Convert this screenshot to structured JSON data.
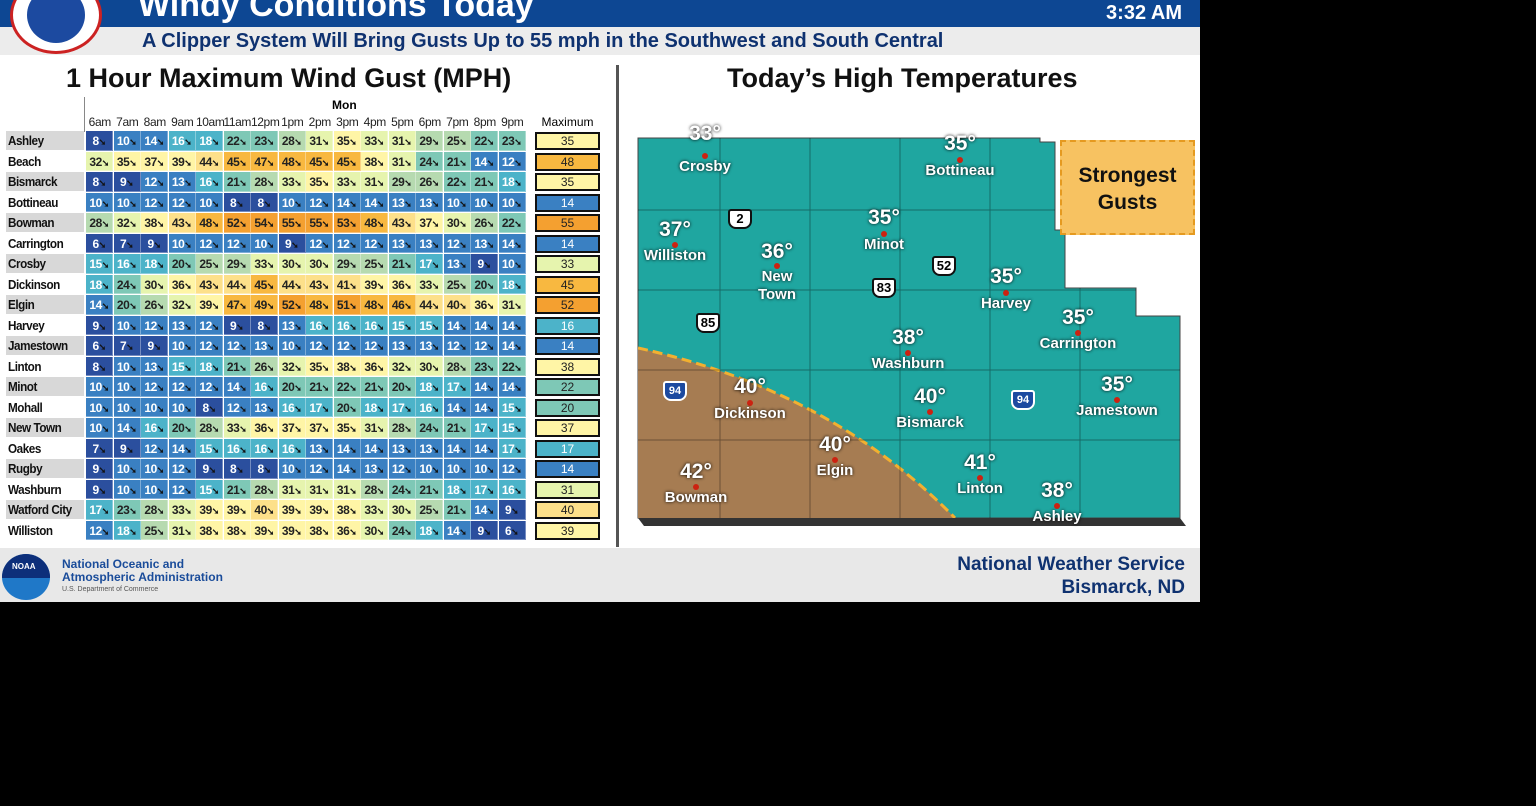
{
  "header": {
    "title": "Windy Conditions Today",
    "time": "3:32 AM",
    "subtitle": "A Clipper System Will Bring Gusts Up to 55 mph in the Southwest and South Central"
  },
  "left": {
    "title": "1 Hour Maximum Wind Gust (MPH)",
    "day": "Mon",
    "max_label": "Maximum",
    "hours": [
      "6am",
      "7am",
      "8am",
      "9am",
      "10am",
      "11am",
      "12pm",
      "1pm",
      "2pm",
      "3pm",
      "4pm",
      "5pm",
      "6pm",
      "7pm",
      "8pm",
      "9pm"
    ],
    "rows": [
      {
        "name": "Ashley",
        "values": [
          8,
          10,
          14,
          16,
          18,
          22,
          23,
          28,
          31,
          35,
          33,
          31,
          29,
          25,
          22,
          23
        ],
        "max": 35
      },
      {
        "name": "Beach",
        "values": [
          32,
          35,
          37,
          39,
          44,
          45,
          47,
          48,
          45,
          45,
          38,
          31,
          24,
          21,
          14,
          12
        ],
        "max": 48
      },
      {
        "name": "Bismarck",
        "values": [
          8,
          9,
          12,
          13,
          16,
          21,
          28,
          33,
          35,
          33,
          31,
          29,
          26,
          22,
          21,
          18
        ],
        "max": 35
      },
      {
        "name": "Bottineau",
        "values": [
          10,
          10,
          12,
          12,
          10,
          8,
          8,
          10,
          12,
          14,
          14,
          13,
          13,
          10,
          10,
          10
        ],
        "max": 14
      },
      {
        "name": "Bowman",
        "values": [
          28,
          32,
          38,
          43,
          48,
          52,
          54,
          55,
          55,
          53,
          48,
          43,
          37,
          30,
          26,
          22
        ],
        "max": 55
      },
      {
        "name": "Carrington",
        "values": [
          6,
          7,
          9,
          10,
          12,
          12,
          10,
          9,
          12,
          12,
          12,
          13,
          13,
          12,
          13,
          14
        ],
        "max": 14
      },
      {
        "name": "Crosby",
        "values": [
          15,
          16,
          18,
          20,
          25,
          29,
          33,
          30,
          30,
          29,
          25,
          21,
          17,
          13,
          9,
          10
        ],
        "max": 33
      },
      {
        "name": "Dickinson",
        "values": [
          18,
          24,
          30,
          36,
          43,
          44,
          45,
          44,
          43,
          41,
          39,
          36,
          33,
          25,
          20,
          18
        ],
        "max": 45
      },
      {
        "name": "Elgin",
        "values": [
          14,
          20,
          26,
          32,
          39,
          47,
          49,
          52,
          48,
          51,
          48,
          46,
          44,
          40,
          36,
          31
        ],
        "max": 52
      },
      {
        "name": "Harvey",
        "values": [
          9,
          10,
          12,
          13,
          12,
          9,
          8,
          13,
          16,
          16,
          16,
          15,
          15,
          14,
          14,
          14
        ],
        "max": 16
      },
      {
        "name": "Jamestown",
        "values": [
          6,
          7,
          9,
          10,
          12,
          12,
          13,
          10,
          12,
          12,
          12,
          13,
          13,
          12,
          12,
          14
        ],
        "max": 14
      },
      {
        "name": "Linton",
        "values": [
          8,
          10,
          13,
          15,
          18,
          21,
          26,
          32,
          35,
          38,
          36,
          32,
          30,
          28,
          23,
          22
        ],
        "max": 38
      },
      {
        "name": "Minot",
        "values": [
          10,
          10,
          12,
          12,
          12,
          14,
          16,
          20,
          21,
          22,
          21,
          20,
          18,
          17,
          14,
          14
        ],
        "max": 22
      },
      {
        "name": "Mohall",
        "values": [
          10,
          10,
          10,
          10,
          8,
          12,
          13,
          16,
          17,
          20,
          18,
          17,
          16,
          14,
          14,
          15
        ],
        "max": 20
      },
      {
        "name": "New Town",
        "values": [
          10,
          14,
          16,
          20,
          28,
          33,
          36,
          37,
          37,
          35,
          31,
          28,
          24,
          21,
          17,
          15
        ],
        "max": 37
      },
      {
        "name": "Oakes",
        "values": [
          7,
          9,
          12,
          14,
          15,
          16,
          16,
          16,
          13,
          14,
          14,
          13,
          13,
          14,
          14,
          17
        ],
        "max": 17
      },
      {
        "name": "Rugby",
        "values": [
          9,
          10,
          10,
          12,
          9,
          8,
          8,
          10,
          12,
          14,
          13,
          12,
          10,
          10,
          10,
          12
        ],
        "max": 14
      },
      {
        "name": "Washburn",
        "values": [
          9,
          10,
          10,
          12,
          15,
          21,
          28,
          31,
          31,
          31,
          28,
          24,
          21,
          18,
          17,
          16
        ],
        "max": 31
      },
      {
        "name": "Watford City",
        "values": [
          17,
          23,
          28,
          33,
          39,
          39,
          40,
          39,
          39,
          38,
          33,
          30,
          25,
          21,
          14,
          9
        ],
        "max": 40
      },
      {
        "name": "Williston",
        "values": [
          12,
          18,
          25,
          31,
          38,
          38,
          39,
          39,
          38,
          36,
          30,
          24,
          18,
          14,
          9,
          6
        ],
        "max": 39
      }
    ]
  },
  "right": {
    "title": "Today’s High Temperatures",
    "callout": "Strongest Gusts",
    "cities": [
      {
        "name": "Crosby",
        "temp": "33°"
      },
      {
        "name": "Bottineau",
        "temp": "35°"
      },
      {
        "name": "Williston",
        "temp": "37°"
      },
      {
        "name": "New Town",
        "temp": "36°"
      },
      {
        "name": "Minot",
        "temp": "35°"
      },
      {
        "name": "Harvey",
        "temp": "35°"
      },
      {
        "name": "Carrington",
        "temp": "35°"
      },
      {
        "name": "Washburn",
        "temp": "38°"
      },
      {
        "name": "Dickinson",
        "temp": "40°"
      },
      {
        "name": "Bismarck",
        "temp": "40°"
      },
      {
        "name": "Jamestown",
        "temp": "35°"
      },
      {
        "name": "Elgin",
        "temp": "40°"
      },
      {
        "name": "Linton",
        "temp": "41°"
      },
      {
        "name": "Bowman",
        "temp": "42°"
      },
      {
        "name": "Ashley",
        "temp": "38°"
      }
    ],
    "highways": [
      "2",
      "52",
      "83",
      "85",
      "94",
      "94"
    ]
  },
  "footer": {
    "noaa_line1": "National Oceanic and",
    "noaa_line2": "Atmospheric Administration",
    "noaa_line3": "U.S. Department of Commerce",
    "noaa_logo": "NOAA",
    "nws_line1": "National Weather Service",
    "nws_line2": "Bismarck, ND"
  },
  "colors": {
    "header": "#0d4793",
    "teal": "#1fa6a0",
    "gust_zone": "#a67c52",
    "callout": "#f7c261"
  }
}
